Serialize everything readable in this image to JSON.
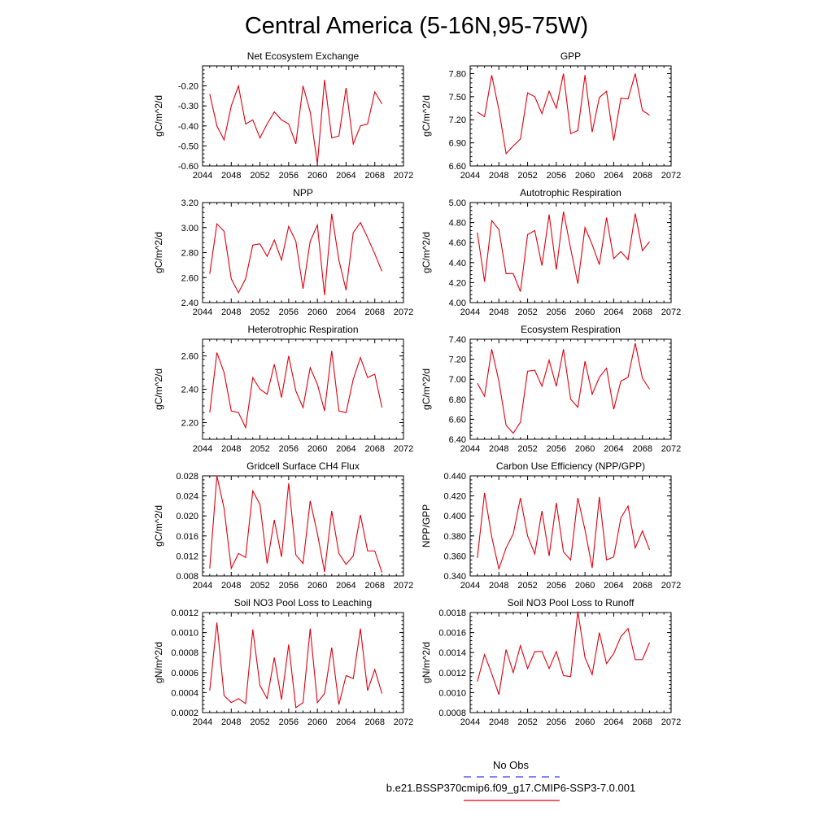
{
  "figure": {
    "title": "Central America (5-16N,95-75W)"
  },
  "legend": {
    "obs_label": "No Obs",
    "obs_color": "#3a3af0",
    "model_label": "b.e21.BSSP370cmip6.f09_g17.CMIP6-SSP3-7.0.001",
    "model_color": "#e0000f"
  },
  "chart_data": [
    {
      "type": "line",
      "title": "Net Ecosystem Exchange",
      "ylabel": "gC/m^2/d",
      "xlim": [
        2044,
        2072
      ],
      "xticks": [
        2044,
        2048,
        2052,
        2056,
        2060,
        2064,
        2068,
        2072
      ],
      "ylim": [
        -0.6,
        -0.1
      ],
      "yticks": [
        -0.6,
        -0.5,
        -0.4,
        -0.3,
        -0.2
      ],
      "ydecimals": 2,
      "series": [
        {
          "x": [
            2045,
            2046,
            2047,
            2048,
            2049,
            2050,
            2051,
            2052,
            2053,
            2054,
            2055,
            2056,
            2057,
            2058,
            2059,
            2060,
            2061,
            2062,
            2063,
            2064,
            2065,
            2066,
            2067,
            2068,
            2069
          ],
          "values": [
            -0.24,
            -0.4,
            -0.47,
            -0.3,
            -0.2,
            -0.39,
            -0.37,
            -0.46,
            -0.39,
            -0.33,
            -0.37,
            -0.39,
            -0.49,
            -0.2,
            -0.33,
            -0.59,
            -0.17,
            -0.46,
            -0.45,
            -0.21,
            -0.49,
            -0.4,
            -0.39,
            -0.23,
            -0.29
          ],
          "color": "#e0000f"
        }
      ]
    },
    {
      "type": "line",
      "title": "GPP",
      "ylabel": "gC/m^2/d",
      "xlim": [
        2044,
        2072
      ],
      "xticks": [
        2044,
        2048,
        2052,
        2056,
        2060,
        2064,
        2068,
        2072
      ],
      "ylim": [
        6.6,
        7.9
      ],
      "yticks": [
        6.6,
        6.9,
        7.2,
        7.5,
        7.8
      ],
      "ydecimals": 2,
      "series": [
        {
          "x": [
            2045,
            2046,
            2047,
            2048,
            2049,
            2050,
            2051,
            2052,
            2053,
            2054,
            2055,
            2056,
            2057,
            2058,
            2059,
            2060,
            2061,
            2062,
            2063,
            2064,
            2065,
            2066,
            2067,
            2068,
            2069
          ],
          "values": [
            7.3,
            7.24,
            7.78,
            7.33,
            6.76,
            6.86,
            6.95,
            7.55,
            7.5,
            7.28,
            7.57,
            7.35,
            7.8,
            7.02,
            7.06,
            7.78,
            7.04,
            7.49,
            7.57,
            6.93,
            7.48,
            7.47,
            7.8,
            7.32,
            7.26
          ],
          "color": "#e0000f"
        }
      ]
    },
    {
      "type": "line",
      "title": "NPP",
      "ylabel": "gC/m^2/d",
      "xlim": [
        2044,
        2072
      ],
      "xticks": [
        2044,
        2048,
        2052,
        2056,
        2060,
        2064,
        2068,
        2072
      ],
      "ylim": [
        2.4,
        3.2
      ],
      "yticks": [
        2.4,
        2.6,
        2.8,
        3.0,
        3.2
      ],
      "ydecimals": 2,
      "series": [
        {
          "x": [
            2045,
            2046,
            2047,
            2048,
            2049,
            2050,
            2051,
            2052,
            2053,
            2054,
            2055,
            2056,
            2057,
            2058,
            2059,
            2060,
            2061,
            2062,
            2063,
            2064,
            2065,
            2066,
            2067,
            2068,
            2069
          ],
          "values": [
            2.63,
            3.03,
            2.97,
            2.59,
            2.48,
            2.59,
            2.86,
            2.87,
            2.77,
            2.9,
            2.74,
            3.01,
            2.89,
            2.51,
            2.89,
            3.02,
            2.46,
            3.11,
            2.74,
            2.5,
            2.96,
            3.04,
            2.92,
            2.79,
            2.65
          ],
          "color": "#e0000f"
        }
      ]
    },
    {
      "type": "line",
      "title": "Autotrophic Respiration",
      "ylabel": "gC/m^2/d",
      "xlim": [
        2044,
        2072
      ],
      "xticks": [
        2044,
        2048,
        2052,
        2056,
        2060,
        2064,
        2068,
        2072
      ],
      "ylim": [
        4.0,
        5.0
      ],
      "yticks": [
        4.0,
        4.2,
        4.4,
        4.6,
        4.8,
        5.0
      ],
      "ydecimals": 2,
      "series": [
        {
          "x": [
            2045,
            2046,
            2047,
            2048,
            2049,
            2050,
            2051,
            2052,
            2053,
            2054,
            2055,
            2056,
            2057,
            2058,
            2059,
            2060,
            2061,
            2062,
            2063,
            2064,
            2065,
            2066,
            2067,
            2068,
            2069
          ],
          "values": [
            4.7,
            4.21,
            4.82,
            4.73,
            4.29,
            4.29,
            4.11,
            4.68,
            4.72,
            4.37,
            4.88,
            4.33,
            4.91,
            4.54,
            4.19,
            4.75,
            4.58,
            4.38,
            4.85,
            4.44,
            4.51,
            4.43,
            4.89,
            4.52,
            4.61
          ],
          "color": "#e0000f"
        }
      ]
    },
    {
      "type": "line",
      "title": "Heterotrophic Respiration",
      "ylabel": "gC/m^2/d",
      "xlim": [
        2044,
        2072
      ],
      "xticks": [
        2044,
        2048,
        2052,
        2056,
        2060,
        2064,
        2068,
        2072
      ],
      "ylim": [
        2.1,
        2.7
      ],
      "yticks": [
        2.2,
        2.4,
        2.6
      ],
      "ydecimals": 2,
      "series": [
        {
          "x": [
            2045,
            2046,
            2047,
            2048,
            2049,
            2050,
            2051,
            2052,
            2053,
            2054,
            2055,
            2056,
            2057,
            2058,
            2059,
            2060,
            2061,
            2062,
            2063,
            2064,
            2065,
            2066,
            2067,
            2068,
            2069
          ],
          "values": [
            2.26,
            2.62,
            2.5,
            2.27,
            2.26,
            2.17,
            2.47,
            2.4,
            2.37,
            2.55,
            2.35,
            2.6,
            2.39,
            2.29,
            2.53,
            2.43,
            2.27,
            2.63,
            2.27,
            2.26,
            2.46,
            2.59,
            2.47,
            2.49,
            2.29
          ],
          "color": "#e0000f"
        }
      ]
    },
    {
      "type": "line",
      "title": "Ecosystem Respiration",
      "ylabel": "gC/m^2/d",
      "xlim": [
        2044,
        2072
      ],
      "xticks": [
        2044,
        2048,
        2052,
        2056,
        2060,
        2064,
        2068,
        2072
      ],
      "ylim": [
        6.4,
        7.4
      ],
      "yticks": [
        6.4,
        6.6,
        6.8,
        7.0,
        7.2,
        7.4
      ],
      "ydecimals": 2,
      "series": [
        {
          "x": [
            2045,
            2046,
            2047,
            2048,
            2049,
            2050,
            2051,
            2052,
            2053,
            2054,
            2055,
            2056,
            2057,
            2058,
            2059,
            2060,
            2061,
            2062,
            2063,
            2064,
            2065,
            2066,
            2067,
            2068,
            2069
          ],
          "values": [
            6.96,
            6.83,
            7.3,
            6.98,
            6.54,
            6.46,
            6.57,
            7.08,
            7.09,
            6.93,
            7.19,
            6.93,
            7.3,
            6.8,
            6.72,
            7.18,
            6.85,
            7.02,
            7.11,
            6.7,
            6.98,
            7.02,
            7.36,
            7.01,
            6.9
          ],
          "color": "#e0000f"
        }
      ]
    },
    {
      "type": "line",
      "title": "Gridcell Surface CH4 Flux",
      "ylabel": "gC/m^2/d",
      "xlim": [
        2044,
        2072
      ],
      "xticks": [
        2044,
        2048,
        2052,
        2056,
        2060,
        2064,
        2068,
        2072
      ],
      "ylim": [
        0.008,
        0.028
      ],
      "yticks": [
        0.008,
        0.012,
        0.016,
        0.02,
        0.024,
        0.028
      ],
      "ydecimals": 3,
      "series": [
        {
          "x": [
            2045,
            2046,
            2047,
            2048,
            2049,
            2050,
            2051,
            2052,
            2053,
            2054,
            2055,
            2056,
            2057,
            2058,
            2059,
            2060,
            2061,
            2062,
            2063,
            2064,
            2065,
            2066,
            2067,
            2068,
            2069
          ],
          "values": [
            0.0095,
            0.028,
            0.0215,
            0.0095,
            0.0125,
            0.0117,
            0.025,
            0.0223,
            0.0105,
            0.0192,
            0.0118,
            0.0265,
            0.0122,
            0.0105,
            0.023,
            0.0165,
            0.0088,
            0.021,
            0.0125,
            0.0103,
            0.012,
            0.0202,
            0.013,
            0.013,
            0.0087
          ],
          "color": "#e0000f"
        }
      ]
    },
    {
      "type": "line",
      "title": "Carbon Use Efficiency (NPP/GPP)",
      "ylabel": "NPP/GPP",
      "xlim": [
        2044,
        2072
      ],
      "xticks": [
        2044,
        2048,
        2052,
        2056,
        2060,
        2064,
        2068,
        2072
      ],
      "ylim": [
        0.34,
        0.44
      ],
      "yticks": [
        0.34,
        0.36,
        0.38,
        0.4,
        0.42,
        0.44
      ],
      "ydecimals": 3,
      "series": [
        {
          "x": [
            2045,
            2046,
            2047,
            2048,
            2049,
            2050,
            2051,
            2052,
            2053,
            2054,
            2055,
            2056,
            2057,
            2058,
            2059,
            2060,
            2061,
            2062,
            2063,
            2064,
            2065,
            2066,
            2067,
            2068,
            2069
          ],
          "values": [
            0.358,
            0.423,
            0.379,
            0.347,
            0.368,
            0.382,
            0.418,
            0.38,
            0.362,
            0.405,
            0.36,
            0.413,
            0.364,
            0.356,
            0.418,
            0.386,
            0.348,
            0.419,
            0.356,
            0.359,
            0.398,
            0.41,
            0.368,
            0.385,
            0.366
          ],
          "color": "#e0000f"
        }
      ]
    },
    {
      "type": "line",
      "title": "Soil NO3 Pool Loss to Leaching",
      "ylabel": "gN/m^2/d",
      "xlim": [
        2044,
        2072
      ],
      "xticks": [
        2044,
        2048,
        2052,
        2056,
        2060,
        2064,
        2068,
        2072
      ],
      "ylim": [
        0.0002,
        0.0012
      ],
      "yticks": [
        0.0002,
        0.0004,
        0.0006,
        0.0008,
        0.001,
        0.0012
      ],
      "ydecimals": 4,
      "series": [
        {
          "x": [
            2045,
            2046,
            2047,
            2048,
            2049,
            2050,
            2051,
            2052,
            2053,
            2054,
            2055,
            2056,
            2057,
            2058,
            2059,
            2060,
            2061,
            2062,
            2063,
            2064,
            2065,
            2066,
            2067,
            2068,
            2069
          ],
          "values": [
            0.00042,
            0.0011,
            0.00037,
            0.0003,
            0.00034,
            0.00029,
            0.00103,
            0.00047,
            0.00034,
            0.00075,
            0.00033,
            0.00088,
            0.00025,
            0.0003,
            0.00104,
            0.0003,
            0.00039,
            0.00085,
            0.00028,
            0.00057,
            0.00054,
            0.00104,
            0.00042,
            0.00063,
            0.00039
          ],
          "color": "#e0000f"
        }
      ]
    },
    {
      "type": "line",
      "title": "Soil NO3 Pool Loss to Runoff",
      "ylabel": "gN/m^2/d",
      "xlim": [
        2044,
        2072
      ],
      "xticks": [
        2044,
        2048,
        2052,
        2056,
        2060,
        2064,
        2068,
        2072
      ],
      "ylim": [
        0.0008,
        0.0018
      ],
      "yticks": [
        0.0008,
        0.001,
        0.0012,
        0.0014,
        0.0016,
        0.0018
      ],
      "ydecimals": 4,
      "series": [
        {
          "x": [
            2045,
            2046,
            2047,
            2048,
            2049,
            2050,
            2051,
            2052,
            2053,
            2054,
            2055,
            2056,
            2057,
            2058,
            2059,
            2060,
            2061,
            2062,
            2063,
            2064,
            2065,
            2066,
            2067,
            2068,
            2069
          ],
          "values": [
            0.00111,
            0.00138,
            0.00119,
            0.00098,
            0.00143,
            0.0012,
            0.00147,
            0.00124,
            0.00141,
            0.00141,
            0.00124,
            0.00141,
            0.00117,
            0.00116,
            0.00181,
            0.00135,
            0.00118,
            0.0016,
            0.00129,
            0.00139,
            0.00156,
            0.00164,
            0.00133,
            0.00133,
            0.0015
          ],
          "color": "#e0000f"
        }
      ]
    }
  ]
}
